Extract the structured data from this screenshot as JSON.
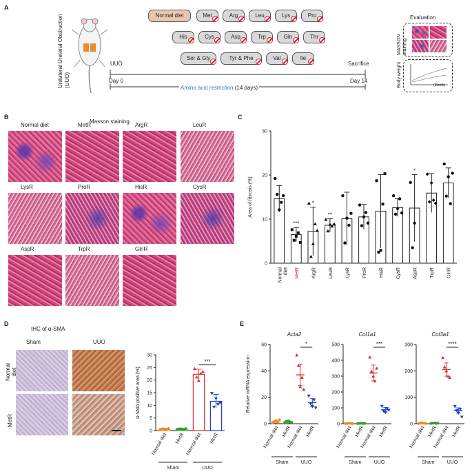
{
  "panels": {
    "a": "A",
    "b": "B",
    "c": "C",
    "d": "D",
    "e": "E"
  },
  "schema": {
    "uuo_label": "Unilateral Ureteral Obstruction (UUO)",
    "uuo": "UUO",
    "sacrifice": "Sacrifice",
    "day0": "Day 0",
    "day14": "Day 14",
    "restriction": "Amino acid restriction",
    "restriction_days": "(14 days)",
    "evaluation": "Evaluation",
    "masson_staining": "MASSON staining",
    "body_weight": "Body weight",
    "month": "(Month)",
    "normal_diet": "Normal diet",
    "diets_row1": [
      "Met",
      "Arg",
      "Leu",
      "Lys",
      "Pro"
    ],
    "diets_row2": [
      "His",
      "Cys",
      "Asp",
      "Trp",
      "Gln",
      "Thr"
    ],
    "diets_row3": [
      "Ser & Gly",
      "Tyr & Phe",
      "Val",
      "Ile"
    ]
  },
  "masson": {
    "title": "Masson staining",
    "labels": [
      "Normal diet",
      "MetR",
      "ArgR",
      "LeuR",
      "LysR",
      "ProR",
      "HisR",
      "CysR",
      "AspR",
      "TrpR",
      "GlnR"
    ]
  },
  "ihc": {
    "title": "IHC of α-SMA",
    "cols": [
      "Sham",
      "UUO"
    ],
    "rows": [
      "Normal diet",
      "MetR"
    ]
  },
  "chart_data": [
    {
      "type": "bar",
      "ylabel": "Area of fibrosis (%)",
      "ylim": [
        0,
        30
      ],
      "yticks": [
        0,
        10,
        20,
        30
      ],
      "categories": [
        "Normal diet",
        "MetR",
        "ArgR",
        "LeuR",
        "LysR",
        "ProR",
        "HisR",
        "CysR",
        "AspR",
        "TrpR",
        "GlnR"
      ],
      "values": [
        14.6,
        6.5,
        7.2,
        8.6,
        10.1,
        10.5,
        11.8,
        12.6,
        12.5,
        15.9,
        18.2
      ],
      "errors": [
        3.0,
        1.6,
        5.5,
        1.5,
        6.0,
        2.8,
        8.3,
        2.0,
        7.6,
        4.4,
        3.4
      ],
      "significance": [
        "",
        "***",
        "*",
        "**",
        "",
        "",
        "",
        "",
        "*",
        "",
        ""
      ],
      "points": [
        [
          19.2,
          15.6,
          12.1,
          13.8,
          15.3
        ],
        [
          7.6,
          5.2,
          6.1,
          6.9,
          4.7
        ],
        [
          13.6,
          1.5,
          4.4,
          8.9,
          7.4
        ],
        [
          9.9,
          7.3,
          8.8,
          8.4,
          8.9
        ],
        [
          15.3,
          4.6,
          10.2,
          8.6,
          11.3
        ],
        [
          13.2,
          8.5,
          10.5,
          11.5,
          9.1
        ],
        [
          18.7,
          2.5,
          2.9,
          13.4,
          20.3
        ],
        [
          15.3,
          11.1,
          12.4,
          14.6,
          11.4
        ],
        [
          18.3,
          3.5,
          9.1
        ],
        [
          20.2,
          13.9,
          18.2,
          14.3,
          13.6
        ],
        [
          22.5,
          15.2,
          19.6,
          13.5,
          20.4
        ]
      ]
    },
    {
      "type": "bar",
      "ylabel": "α-SMA  positive area (%)",
      "ylim": [
        0,
        30
      ],
      "yticks": [
        0,
        5,
        10,
        15,
        20,
        25,
        30
      ],
      "categories": [
        "Normal diet",
        "MetR",
        "Normal diet",
        "MetR"
      ],
      "groups": [
        "Sham",
        "UUO"
      ],
      "values": [
        0.6,
        0.6,
        22.3,
        11.6
      ],
      "errors": [
        0.3,
        0.3,
        2.0,
        2.7
      ],
      "colors": [
        "#f08a24",
        "#2ca02c",
        "#e0312f",
        "#1f3fbf"
      ],
      "significance": "***",
      "points": [
        [
          0.4,
          0.7,
          0.6,
          0.5,
          0.8
        ],
        [
          0.5,
          0.7,
          0.6,
          0.4,
          0.8
        ],
        [
          24.5,
          21.2,
          19.8,
          22.6,
          23.4
        ],
        [
          14.7,
          9.3,
          12.6,
          10.4,
          11.0
        ]
      ]
    },
    {
      "type": "scatter",
      "title": "Acta2",
      "ylabel": "Relative mRNA expression",
      "ylim": [
        0,
        60
      ],
      "yticks": [
        0,
        20,
        40,
        60
      ],
      "categories": [
        "Normal diet",
        "MetR",
        "Normal diet",
        "MetR"
      ],
      "groups": [
        "Sham",
        "UUO"
      ],
      "values": [
        1.5,
        1.5,
        37,
        16
      ],
      "errors": [
        1.0,
        0.8,
        8,
        3
      ],
      "colors": [
        "#f08a24",
        "#2ca02c",
        "#e0312f",
        "#1f3fbf"
      ],
      "significance": "*",
      "points": [
        [
          0.8,
          1.6,
          2.4,
          1.1,
          3.0
        ],
        [
          1.0,
          1.8,
          2.2,
          1.2,
          0.9
        ],
        [
          52,
          44,
          28,
          35,
          26
        ],
        [
          21,
          15,
          13,
          18,
          12
        ]
      ]
    },
    {
      "type": "scatter",
      "title": "Col1a1",
      "ylabel": "",
      "ylim": [
        0,
        500
      ],
      "yticks": [
        0,
        100,
        200,
        300,
        400,
        500
      ],
      "categories": [
        "Normal diet",
        "MetR",
        "Normal diet",
        "MetR"
      ],
      "groups": [
        "Sham",
        "UUO"
      ],
      "values": [
        2,
        2,
        320,
        88
      ],
      "errors": [
        1,
        1,
        50,
        15
      ],
      "colors": [
        "#f08a24",
        "#2ca02c",
        "#e0312f",
        "#1f3fbf"
      ],
      "significance": "***",
      "points": [
        [
          1,
          2,
          3,
          2,
          1
        ],
        [
          1,
          2,
          3,
          1,
          2
        ],
        [
          420,
          330,
          300,
          270,
          350
        ],
        [
          110,
          80,
          70,
          95,
          85
        ]
      ]
    },
    {
      "type": "scatter",
      "title": "Col3a1",
      "ylabel": "",
      "ylim": [
        0,
        300
      ],
      "yticks": [
        0,
        100,
        200,
        300
      ],
      "categories": [
        "Normal diet",
        "MetR",
        "Normal diet",
        "MetR"
      ],
      "groups": [
        "Sham",
        "UUO"
      ],
      "values": [
        2,
        2,
        205,
        50
      ],
      "errors": [
        1,
        1,
        25,
        10
      ],
      "colors": [
        "#f08a24",
        "#2ca02c",
        "#e0312f",
        "#1f3fbf"
      ],
      "significance": "****",
      "points": [
        [
          1,
          2,
          3,
          2,
          1
        ],
        [
          1,
          2,
          3,
          1,
          2
        ],
        [
          250,
          215,
          200,
          180,
          175
        ],
        [
          65,
          50,
          40,
          55,
          25
        ]
      ]
    }
  ]
}
